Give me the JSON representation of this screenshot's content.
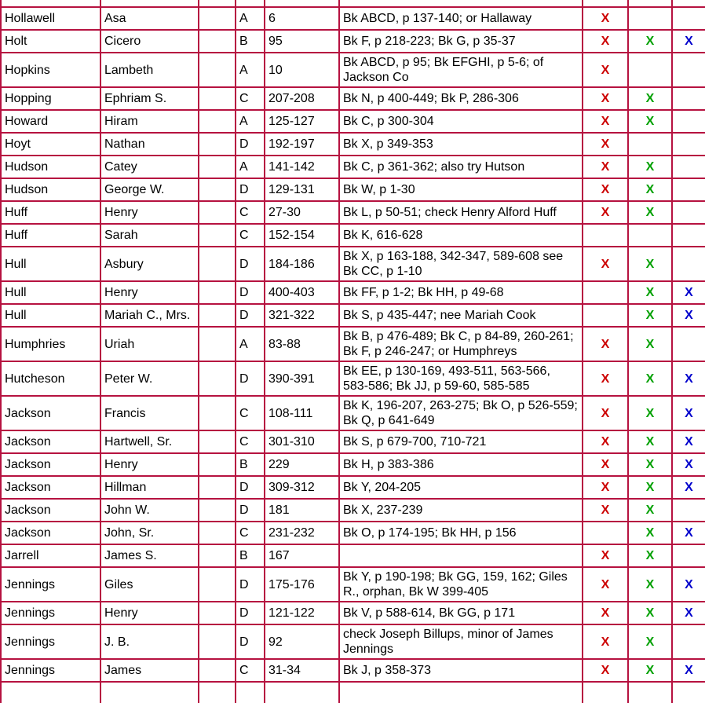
{
  "page": {
    "background": "#ffffff",
    "border_color": "#b61240",
    "text_color": "#000000"
  },
  "table": {
    "mark_colors": {
      "red": "#cc0000",
      "green": "#00a000",
      "blue": "#0000cc"
    },
    "rows": [
      {
        "surname": "Hollawell",
        "given": "Asa",
        "extra": "",
        "letter": "A",
        "pages": "6",
        "refs": "Bk ABCD, p 137-140; or Hallaway",
        "m_red": "X",
        "m_green": "",
        "m_blue": ""
      },
      {
        "surname": "Holt",
        "given": "Cicero",
        "extra": "",
        "letter": "B",
        "pages": "95",
        "refs": "Bk F, p 218-223; Bk G, p 35-37",
        "m_red": "X",
        "m_green": "X",
        "m_blue": "X"
      },
      {
        "surname": "Hopkins",
        "given": "Lambeth",
        "extra": "",
        "letter": "A",
        "pages": "10",
        "refs": "Bk ABCD, p 95; Bk EFGHI, p 5-6; of Jackson Co",
        "m_red": "X",
        "m_green": "",
        "m_blue": ""
      },
      {
        "surname": "Hopping",
        "given": "Ephriam S.",
        "extra": "",
        "letter": "C",
        "pages": "207-208",
        "refs": "Bk N, p 400-449; Bk P, 286-306",
        "m_red": "X",
        "m_green": "X",
        "m_blue": ""
      },
      {
        "surname": "Howard",
        "given": "Hiram",
        "extra": "",
        "letter": "A",
        "pages": "125-127",
        "refs": "Bk C, p 300-304",
        "m_red": "X",
        "m_green": "X",
        "m_blue": ""
      },
      {
        "surname": "Hoyt",
        "given": "Nathan",
        "extra": "",
        "letter": "D",
        "pages": "192-197",
        "refs": "Bk X, p 349-353",
        "m_red": "X",
        "m_green": "",
        "m_blue": ""
      },
      {
        "surname": "Hudson",
        "given": "Catey",
        "extra": "",
        "letter": "A",
        "pages": "141-142",
        "refs": "Bk C, p 361-362; also try Hutson",
        "m_red": "X",
        "m_green": "X",
        "m_blue": ""
      },
      {
        "surname": "Hudson",
        "given": "George W.",
        "extra": "",
        "letter": "D",
        "pages": "129-131",
        "refs": "Bk W, p 1-30",
        "m_red": "X",
        "m_green": "X",
        "m_blue": ""
      },
      {
        "surname": "Huff",
        "given": "Henry",
        "extra": "",
        "letter": "C",
        "pages": "27-30",
        "refs": "Bk L, p 50-51; check Henry Alford Huff",
        "m_red": "X",
        "m_green": "X",
        "m_blue": ""
      },
      {
        "surname": "Huff",
        "given": "Sarah",
        "extra": "",
        "letter": "C",
        "pages": "152-154",
        "refs": "Bk K, 616-628",
        "m_red": "",
        "m_green": "",
        "m_blue": ""
      },
      {
        "surname": "Hull",
        "given": "Asbury",
        "extra": "",
        "letter": "D",
        "pages": "184-186",
        "refs": "Bk X, p 163-188, 342-347, 589-608 see Bk CC, p 1-10",
        "m_red": "X",
        "m_green": "X",
        "m_blue": ""
      },
      {
        "surname": "Hull",
        "given": "Henry",
        "extra": "",
        "letter": "D",
        "pages": "400-403",
        "refs": "Bk FF, p 1-2; Bk HH, p 49-68",
        "m_red": "",
        "m_green": "X",
        "m_blue": "X"
      },
      {
        "surname": "Hull",
        "given": "Mariah C., Mrs.",
        "extra": "",
        "letter": "D",
        "pages": "321-322",
        "refs": "Bk S, p 435-447; nee Mariah Cook",
        "m_red": "",
        "m_green": "X",
        "m_blue": "X"
      },
      {
        "surname": "Humphries",
        "given": "Uriah",
        "extra": "",
        "letter": "A",
        "pages": "83-88",
        "refs": "Bk B, p 476-489; Bk C, p 84-89, 260-261; Bk F, p 246-247; or Humphreys",
        "m_red": "X",
        "m_green": "X",
        "m_blue": ""
      },
      {
        "surname": "Hutcheson",
        "given": "Peter W.",
        "extra": "",
        "letter": "D",
        "pages": "390-391",
        "refs": "Bk EE, p 130-169, 493-511, 563-566, 583-586; Bk JJ, p 59-60, 585-585",
        "m_red": "X",
        "m_green": "X",
        "m_blue": "X"
      },
      {
        "surname": "Jackson",
        "given": "Francis",
        "extra": "",
        "letter": "C",
        "pages": "108-111",
        "refs": "Bk K, 196-207, 263-275; Bk O, p 526-559; Bk Q, p 641-649",
        "m_red": "X",
        "m_green": "X",
        "m_blue": "X"
      },
      {
        "surname": "Jackson",
        "given": "Hartwell, Sr.",
        "extra": "",
        "letter": "C",
        "pages": "301-310",
        "refs": "Bk S, p 679-700, 710-721",
        "m_red": "X",
        "m_green": "X",
        "m_blue": "X"
      },
      {
        "surname": "Jackson",
        "given": "Henry",
        "extra": "",
        "letter": "B",
        "pages": "229",
        "refs": "Bk H, p 383-386",
        "m_red": "X",
        "m_green": "X",
        "m_blue": "X"
      },
      {
        "surname": "Jackson",
        "given": "Hillman",
        "extra": "",
        "letter": "D",
        "pages": "309-312",
        "refs": "Bk Y, 204-205",
        "m_red": "X",
        "m_green": "X",
        "m_blue": "X"
      },
      {
        "surname": "Jackson",
        "given": "John W.",
        "extra": "",
        "letter": "D",
        "pages": "181",
        "refs": "Bk X, 237-239",
        "m_red": "X",
        "m_green": "X",
        "m_blue": ""
      },
      {
        "surname": "Jackson",
        "given": "John, Sr.",
        "extra": "",
        "letter": "C",
        "pages": "231-232",
        "refs": "Bk O, p 174-195; Bk HH, p 156",
        "m_red": "",
        "m_green": "X",
        "m_blue": "X"
      },
      {
        "surname": "Jarrell",
        "given": "James S.",
        "extra": "",
        "letter": "B",
        "pages": "167",
        "refs": "",
        "m_red": "X",
        "m_green": "X",
        "m_blue": ""
      },
      {
        "surname": "Jennings",
        "given": "Giles",
        "extra": "",
        "letter": "D",
        "pages": "175-176",
        "refs": "Bk Y, p 190-198; Bk GG, 159, 162; Giles R., orphan, Bk W 399-405",
        "m_red": "X",
        "m_green": "X",
        "m_blue": "X"
      },
      {
        "surname": "Jennings",
        "given": "Henry",
        "extra": "",
        "letter": "D",
        "pages": "121-122",
        "refs": "Bk V, p 588-614, Bk GG, p 171",
        "m_red": "X",
        "m_green": "X",
        "m_blue": "X"
      },
      {
        "surname": "Jennings",
        "given": "J. B.",
        "extra": "",
        "letter": "D",
        "pages": "92",
        "refs": "check Joseph Billups, minor of James Jennings",
        "m_red": "X",
        "m_green": "X",
        "m_blue": ""
      },
      {
        "surname": "Jennings",
        "given": "James",
        "extra": "",
        "letter": "C",
        "pages": "31-34",
        "refs": "Bk J, p 358-373",
        "m_red": "X",
        "m_green": "X",
        "m_blue": "X"
      }
    ]
  }
}
